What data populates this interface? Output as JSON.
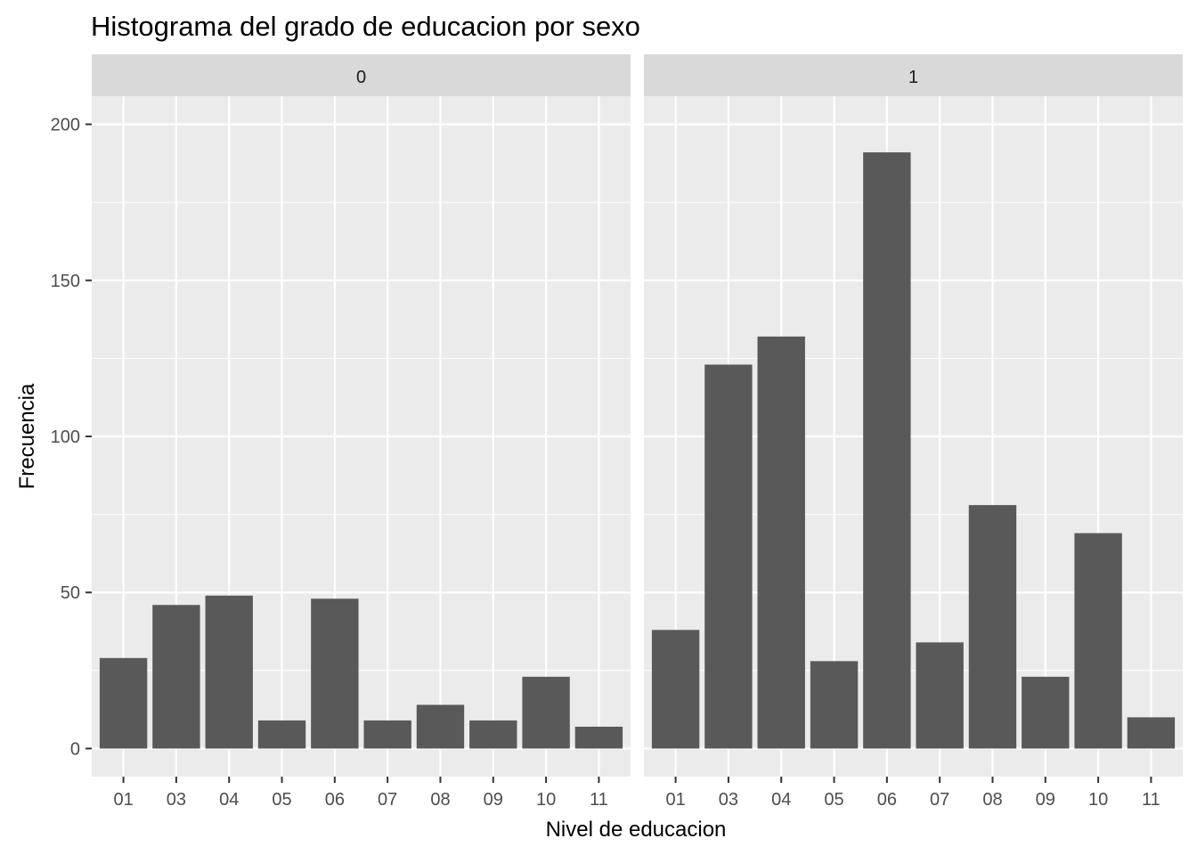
{
  "chart_data": {
    "type": "bar",
    "title": "Histograma del grado de educacion por sexo",
    "xlabel": "Nivel de educacion",
    "ylabel": "Frecuencia",
    "categories": [
      "01",
      "03",
      "04",
      "05",
      "06",
      "07",
      "08",
      "09",
      "10",
      "11"
    ],
    "ylim": [
      -9,
      209
    ],
    "yticks": [
      0,
      50,
      100,
      150,
      200
    ],
    "grid": true,
    "facets": [
      {
        "label": "0",
        "values": [
          29,
          46,
          49,
          9,
          48,
          9,
          14,
          9,
          23,
          7
        ]
      },
      {
        "label": "1",
        "values": [
          38,
          123,
          132,
          28,
          191,
          34,
          78,
          23,
          69,
          10
        ]
      }
    ]
  },
  "colors": {
    "panel_background": "#EBEBEB",
    "strip_background": "#D9D9D9",
    "grid": "#FFFFFF",
    "bar_fill": "#595959",
    "axis_text": "#4D4D4D",
    "title_text": "#000000"
  }
}
